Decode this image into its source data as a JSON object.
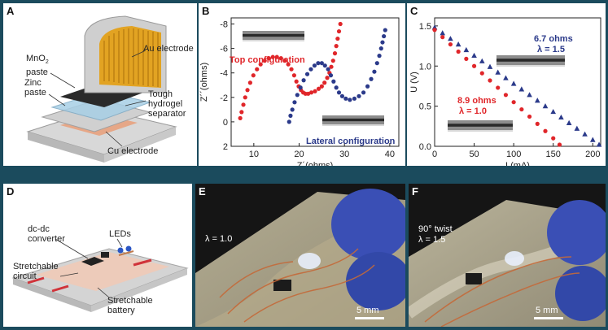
{
  "panelA": {
    "label": "A",
    "annotations": [
      "Au electrode",
      "MnO2 paste",
      "Zinc paste",
      "Tough hydrogel separator",
      "Cu electrode"
    ],
    "lines": {
      "mno2_a": "MnO",
      "mno2_b": "2",
      "mno2_c": "paste",
      "zinc_a": "Zinc",
      "zinc_b": "paste",
      "tough_a": "Tough",
      "tough_b": "hydrogel",
      "tough_c": "separator"
    }
  },
  "panelB": {
    "label": "B",
    "config_top": "Top configuration",
    "config_lateral": "Lateral configuration"
  },
  "panelC": {
    "label": "C",
    "r1": "6.7 ohms",
    "l1": "λ = 1.5",
    "r2": "8.9 ohms",
    "l2": "λ = 1.0"
  },
  "panelD": {
    "label": "D",
    "annotations": [
      "dc-dc converter",
      "LEDs",
      "Stretchable circuit",
      "Stretchable battery"
    ],
    "lines": {
      "dc_a": "dc-dc",
      "dc_b": "converter",
      "leds": "LEDs",
      "sc_a": "Stretchable",
      "sc_b": "circuit",
      "sb_a": "Stretchable",
      "sb_b": "battery"
    }
  },
  "panelE": {
    "label": "E",
    "lambda": "λ = 1.0",
    "scale": "5 mm"
  },
  "panelF": {
    "label": "F",
    "twist": "90° twist",
    "lambda": "λ = 1.5",
    "scale": "5 mm"
  },
  "chart_data": [
    {
      "type": "scatter",
      "panel": "B",
      "xlabel": "Z´(ohms)",
      "ylabel": "Z´´(ohms)",
      "xlim": [
        5,
        42
      ],
      "ylim": [
        2,
        -8.5
      ],
      "xticks": [
        "10",
        "20",
        "30",
        "40"
      ],
      "yticks": [
        "-8",
        "-6",
        "-4",
        "-2",
        "0",
        "2"
      ],
      "series": [
        {
          "name": "Top configuration",
          "color": "#e0262a",
          "x": [
            7,
            7.3,
            7.7,
            8.1,
            8.6,
            9.2,
            9.9,
            10.7,
            11.5,
            12.4,
            13.3,
            14.2,
            15.1,
            16,
            16.8,
            17.6,
            18.3,
            18.9,
            19.4,
            19.9,
            20.4,
            20.9,
            21.4,
            22,
            22.7,
            23.5,
            24.3,
            25,
            25.6,
            26.2,
            26.7,
            27.1,
            27.5,
            27.9,
            28.2,
            28.5,
            28.8,
            29.1
          ],
          "y": [
            -0.3,
            -0.8,
            -1.4,
            -2,
            -2.6,
            -3.2,
            -3.8,
            -4.3,
            -4.7,
            -5,
            -5.2,
            -5.3,
            -5.3,
            -5.2,
            -5,
            -4.7,
            -4.3,
            -3.8,
            -3.3,
            -2.9,
            -2.6,
            -2.4,
            -2.3,
            -2.3,
            -2.4,
            -2.5,
            -2.7,
            -2.9,
            -3.2,
            -3.6,
            -4,
            -4.5,
            -5,
            -5.6,
            -6.2,
            -6.8,
            -7.4,
            -8
          ]
        },
        {
          "name": "Lateral configuration",
          "color": "#2b3a8a",
          "x": [
            17.8,
            18.1,
            18.5,
            19,
            19.6,
            20.3,
            21,
            21.8,
            22.6,
            23.4,
            24.2,
            25,
            25.7,
            26.4,
            27,
            27.6,
            28.2,
            28.8,
            29.5,
            30.3,
            31.2,
            32.2,
            33.2,
            34.2,
            35.1,
            35.9,
            36.6,
            37.2,
            37.7,
            38.1,
            38.4,
            38.7,
            39
          ],
          "y": [
            0,
            -0.5,
            -1,
            -1.6,
            -2.2,
            -2.8,
            -3.4,
            -3.9,
            -4.3,
            -4.6,
            -4.8,
            -4.8,
            -4.6,
            -4.3,
            -3.8,
            -3.3,
            -2.8,
            -2.4,
            -2.1,
            -1.9,
            -1.8,
            -1.9,
            -2.1,
            -2.4,
            -2.9,
            -3.5,
            -4.1,
            -4.8,
            -5.4,
            -6,
            -6.5,
            -7,
            -7.5
          ]
        }
      ]
    },
    {
      "type": "scatter",
      "panel": "C",
      "xlabel": "I (mA)",
      "ylabel": "U (V)",
      "xlim": [
        0,
        210
      ],
      "ylim": [
        0,
        1.6
      ],
      "xticks": [
        "0",
        "50",
        "100",
        "150",
        "200"
      ],
      "yticks": [
        "0.0",
        "0.5",
        "1.0",
        "1.5"
      ],
      "series": [
        {
          "name": "6.7 ohms, λ = 1.5",
          "color": "#2b3a8a",
          "marker": "triangle",
          "x": [
            0,
            10,
            20,
            30,
            40,
            50,
            60,
            70,
            80,
            90,
            100,
            110,
            120,
            130,
            140,
            150,
            160,
            170,
            180,
            190,
            200,
            208
          ],
          "y": [
            1.48,
            1.41,
            1.34,
            1.27,
            1.2,
            1.13,
            1.06,
            0.99,
            0.92,
            0.85,
            0.78,
            0.71,
            0.64,
            0.57,
            0.5,
            0.43,
            0.36,
            0.29,
            0.22,
            0.15,
            0.08,
            0.02
          ]
        },
        {
          "name": "8.9 ohms, λ = 1.0",
          "color": "#e0262a",
          "marker": "circle",
          "x": [
            0,
            10,
            20,
            30,
            40,
            50,
            60,
            70,
            80,
            90,
            100,
            110,
            120,
            130,
            140,
            150,
            158
          ],
          "y": [
            1.45,
            1.36,
            1.27,
            1.18,
            1.09,
            1,
            0.91,
            0.82,
            0.73,
            0.64,
            0.55,
            0.46,
            0.37,
            0.28,
            0.19,
            0.1,
            0.02
          ]
        }
      ]
    }
  ]
}
